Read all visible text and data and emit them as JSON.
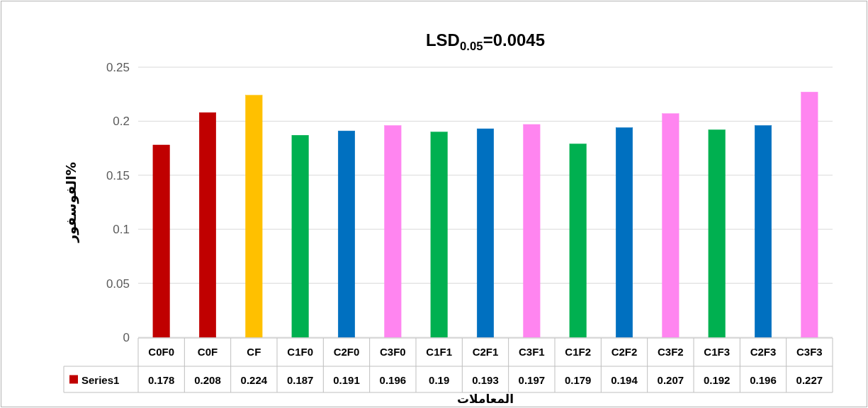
{
  "chart_data": {
    "type": "bar",
    "title": "LSD$_{0.05}$=0.0045",
    "xlabel": "المعاملات",
    "ylabel": "الفوسفور%",
    "categories": [
      "C0F0",
      "C0F",
      "CF",
      "C1F0",
      "C2F0",
      "C3F0",
      "C1F1",
      "C2F1",
      "C3F1",
      "C1F2",
      "C2F2",
      "C3F2",
      "C1F3",
      "C2F3",
      "C3F3"
    ],
    "series": [
      {
        "name": "Series1",
        "values": [
          0.178,
          0.208,
          0.224,
          0.187,
          0.191,
          0.196,
          0.19,
          0.193,
          0.197,
          0.179,
          0.194,
          0.207,
          0.192,
          0.196,
          0.227
        ]
      }
    ],
    "colors": [
      "#c00000",
      "#c00000",
      "#ffc000",
      "#00b050",
      "#0070c0",
      "#ff85f0",
      "#00b050",
      "#0070c0",
      "#ff85f0",
      "#00b050",
      "#0070c0",
      "#ff85f0",
      "#00b050",
      "#0070c0",
      "#ff85f0"
    ],
    "ylim": [
      0,
      0.25
    ],
    "yticks": [
      0,
      0.05,
      0.1,
      0.15,
      0.2,
      0.25
    ],
    "grid": "y",
    "data_labels": true,
    "legend": "bottom"
  }
}
